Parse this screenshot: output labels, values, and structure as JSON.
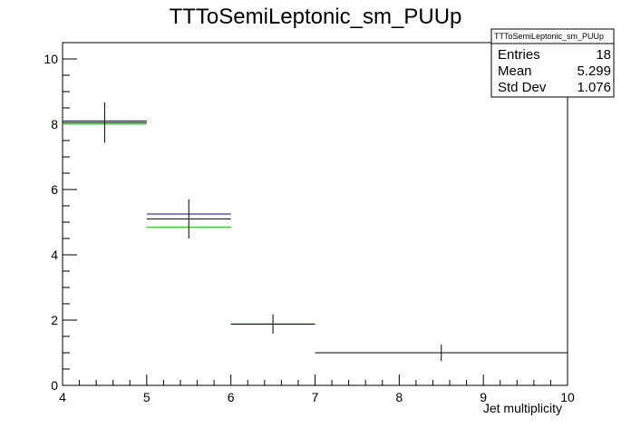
{
  "chart_data": {
    "type": "scatter",
    "title": "TTToSemiLeptonic_sm_PUUp",
    "xlabel": "Jet multiplicity",
    "ylabel": "",
    "xlim": [
      4,
      10
    ],
    "ylim": [
      0,
      10.5
    ],
    "x_ticks": [
      4,
      5,
      6,
      7,
      8,
      9,
      10
    ],
    "y_ticks": [
      0,
      2,
      4,
      6,
      8,
      10
    ],
    "grid": false,
    "series": [
      {
        "color": "#000000",
        "bins": [
          {
            "low": 4,
            "high": 5,
            "value": 8.05,
            "error": 0.62
          },
          {
            "low": 5,
            "high": 6,
            "value": 5.1,
            "error": 0.6
          },
          {
            "low": 6,
            "high": 7,
            "value": 1.88,
            "error": 0.3
          },
          {
            "low": 7,
            "high": 10,
            "value": 1.0,
            "error": 0.25
          }
        ]
      },
      {
        "color": "#0000cc",
        "bins": [
          {
            "low": 4,
            "high": 5,
            "value": 8.1
          },
          {
            "low": 5,
            "high": 6,
            "value": 5.25
          }
        ]
      },
      {
        "color": "#00cc00",
        "bins": [
          {
            "low": 4,
            "high": 5,
            "value": 8.0
          },
          {
            "low": 5,
            "high": 6,
            "value": 4.85
          },
          {
            "low": 6,
            "high": 7,
            "value": 1.88
          }
        ]
      }
    ],
    "stats_box": {
      "title": "TTToSemiLeptonic_sm_PUUp",
      "legend_placement": "top-right",
      "rows": [
        {
          "label": "Entries",
          "value": "18"
        },
        {
          "label": "Mean",
          "value": "5.299"
        },
        {
          "label": "Std Dev",
          "value": "1.076"
        }
      ]
    }
  }
}
